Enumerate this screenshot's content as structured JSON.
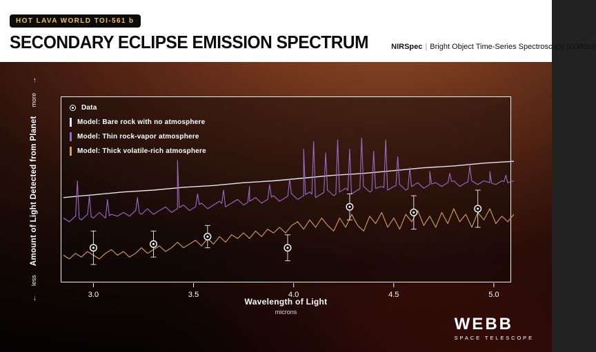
{
  "header": {
    "badge": "HOT LAVA WORLD TOI-561 b",
    "title": "SECONDARY ECLIPSE EMISSION SPECTRUM",
    "instrument": "NIRSpec",
    "separator": "|",
    "instrument_detail": "Bright Object Time-Series Spectroscopy (G395H)"
  },
  "legend": {
    "data_label": "Data",
    "items": [
      {
        "label": "Model: Bare rock with no atmosphere",
        "color": "#e9e4f2"
      },
      {
        "label": "Model: Thin rock-vapor atmosphere",
        "color": "#9a6cc4"
      },
      {
        "label": "Model: Thick volatile-rich atmosphere",
        "color": "#d2a25c"
      }
    ]
  },
  "axes": {
    "x_label": "Wavelength of Light",
    "x_sublabel": "microns",
    "y_label": "Amount of Light Detected from Planet",
    "y_more": "more",
    "y_less": "less",
    "arrow_up": "→",
    "arrow_down": "←",
    "x_tick_labels": [
      "3.0",
      "3.5",
      "4.0",
      "4.5",
      "5.0"
    ]
  },
  "logo": {
    "name": "WEBB",
    "subtitle": "SPACE TELESCOPE"
  },
  "chart_data": {
    "type": "line",
    "title": "Secondary Eclipse Emission Spectrum of TOI-561 b",
    "xlabel": "Wavelength of Light (microns)",
    "ylabel": "Amount of Light Detected from Planet (relative, less to more)",
    "xlim": [
      2.84,
      5.09
    ],
    "ylim": [
      0,
      1
    ],
    "x_ticks": [
      3.0,
      3.5,
      4.0,
      4.5,
      5.0
    ],
    "grid": false,
    "legend_position": "upper-left",
    "series": [
      {
        "name": "Model: Bare rock with no atmosphere",
        "color": "#e9e4f2",
        "width": 1.4,
        "x_start": 2.85,
        "x_step": 0.15,
        "y": [
          0.46,
          0.475,
          0.49,
          0.5,
          0.515,
          0.525,
          0.54,
          0.55,
          0.565,
          0.58,
          0.59,
          0.605,
          0.62,
          0.63,
          0.645,
          0.655
        ]
      },
      {
        "name": "Model: Thin rock-vapor atmosphere",
        "color": "#9a6cc4",
        "width": 1.1,
        "x_start": 2.85,
        "x_step": 0.03,
        "y": [
          0.35,
          0.33,
          0.36,
          0.34,
          0.37,
          0.35,
          0.38,
          0.35,
          0.37,
          0.36,
          0.38,
          0.36,
          0.39,
          0.37,
          0.4,
          0.37,
          0.39,
          0.41,
          0.38,
          0.4,
          0.42,
          0.39,
          0.41,
          0.43,
          0.4,
          0.42,
          0.44,
          0.41,
          0.43,
          0.45,
          0.42,
          0.44,
          0.46,
          0.43,
          0.45,
          0.47,
          0.44,
          0.46,
          0.48,
          0.45,
          0.47,
          0.49,
          0.46,
          0.48,
          0.5,
          0.47,
          0.49,
          0.51,
          0.48,
          0.5,
          0.52,
          0.49,
          0.51,
          0.52,
          0.5,
          0.52,
          0.53,
          0.5,
          0.52,
          0.54,
          0.51,
          0.53,
          0.54,
          0.52,
          0.54,
          0.55,
          0.52,
          0.54,
          0.55,
          0.53,
          0.55,
          0.54,
          0.53,
          0.55,
          0.54,
          0.55
        ],
        "spikes": [
          {
            "x": 2.92,
            "y": 0.55
          },
          {
            "x": 2.98,
            "y": 0.47
          },
          {
            "x": 3.07,
            "y": 0.45
          },
          {
            "x": 3.22,
            "y": 0.46
          },
          {
            "x": 3.42,
            "y": 0.66
          },
          {
            "x": 3.52,
            "y": 0.48
          },
          {
            "x": 3.65,
            "y": 0.5
          },
          {
            "x": 3.78,
            "y": 0.52
          },
          {
            "x": 3.88,
            "y": 0.53
          },
          {
            "x": 3.98,
            "y": 0.56
          },
          {
            "x": 4.05,
            "y": 0.72
          },
          {
            "x": 4.1,
            "y": 0.76
          },
          {
            "x": 4.16,
            "y": 0.7
          },
          {
            "x": 4.22,
            "y": 0.77
          },
          {
            "x": 4.28,
            "y": 0.72
          },
          {
            "x": 4.34,
            "y": 0.78
          },
          {
            "x": 4.4,
            "y": 0.71
          },
          {
            "x": 4.46,
            "y": 0.77
          },
          {
            "x": 4.52,
            "y": 0.68
          },
          {
            "x": 4.58,
            "y": 0.62
          },
          {
            "x": 4.68,
            "y": 0.6
          },
          {
            "x": 4.78,
            "y": 0.59
          },
          {
            "x": 4.88,
            "y": 0.63
          },
          {
            "x": 4.98,
            "y": 0.6
          },
          {
            "x": 5.06,
            "y": 0.58
          }
        ]
      },
      {
        "name": "Model: Thick volatile-rich atmosphere",
        "color": "#d2a25c",
        "width": 1.1,
        "x_start": 2.85,
        "x_step": 0.03,
        "y": [
          0.15,
          0.13,
          0.16,
          0.14,
          0.17,
          0.15,
          0.13,
          0.16,
          0.18,
          0.15,
          0.17,
          0.14,
          0.16,
          0.19,
          0.16,
          0.18,
          0.2,
          0.17,
          0.19,
          0.22,
          0.19,
          0.21,
          0.23,
          0.2,
          0.24,
          0.21,
          0.25,
          0.22,
          0.26,
          0.24,
          0.27,
          0.24,
          0.28,
          0.25,
          0.29,
          0.27,
          0.3,
          0.27,
          0.31,
          0.33,
          0.29,
          0.34,
          0.3,
          0.35,
          0.31,
          0.28,
          0.35,
          0.3,
          0.37,
          0.31,
          0.28,
          0.36,
          0.32,
          0.38,
          0.3,
          0.35,
          0.29,
          0.37,
          0.33,
          0.39,
          0.31,
          0.36,
          0.3,
          0.38,
          0.32,
          0.4,
          0.33,
          0.37,
          0.3,
          0.38,
          0.34,
          0.4,
          0.32,
          0.36,
          0.33,
          0.37
        ]
      }
    ],
    "data_points": {
      "name": "Data",
      "marker_color": "#ffffff",
      "points": [
        {
          "x": 3.0,
          "y": 0.19,
          "err": 0.09
        },
        {
          "x": 3.3,
          "y": 0.21,
          "err": 0.07
        },
        {
          "x": 3.57,
          "y": 0.25,
          "err": 0.06
        },
        {
          "x": 3.97,
          "y": 0.19,
          "err": 0.07
        },
        {
          "x": 4.28,
          "y": 0.41,
          "err": 0.07
        },
        {
          "x": 4.6,
          "y": 0.38,
          "err": 0.09
        },
        {
          "x": 4.92,
          "y": 0.4,
          "err": 0.1
        }
      ]
    }
  }
}
